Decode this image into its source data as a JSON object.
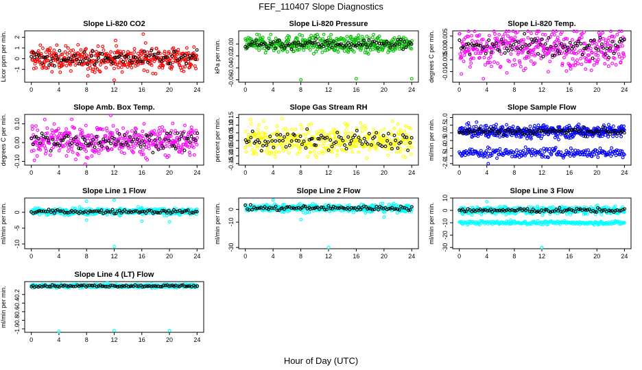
{
  "figure": {
    "title": "FEF_110407  Slope Diagnostics",
    "xlabel": "Hour of Day (UTC)"
  },
  "chart_data": [
    {
      "type": "scatter",
      "title": "Slope Li-820 CO2",
      "ylabel": "Licor ppm per min.",
      "color": "#ff0000",
      "xlim": [
        0,
        24
      ],
      "x_ticks": [
        0,
        4,
        8,
        12,
        16,
        20,
        24
      ],
      "ylim": [
        -2.2,
        2.6
      ],
      "y_ticks": [
        -1,
        0,
        1,
        2
      ],
      "y_tick_labels": [
        "-1",
        "0",
        "1",
        "2"
      ],
      "center": 0,
      "spread": 0.55,
      "band_min": -1.6,
      "band_max": 1.6,
      "outliers": [
        {
          "x": 8.2,
          "y": -1.6
        },
        {
          "x": 12.0,
          "y": -2.0
        },
        {
          "x": 16.2,
          "y": 2.3
        },
        {
          "x": 12.2,
          "y": 1.7
        }
      ],
      "second_band": null
    },
    {
      "type": "scatter",
      "title": "Slope Li-820 Pressure",
      "ylabel": "kPa per min.",
      "color": "#00c000",
      "xlim": [
        0,
        24
      ],
      "x_ticks": [
        0,
        4,
        8,
        12,
        16,
        20,
        24
      ],
      "ylim": [
        -0.064,
        0.022
      ],
      "y_ticks": [
        -0.06,
        -0.04,
        -0.02,
        0.0
      ],
      "y_tick_labels": [
        "-0.06",
        "-0.04",
        "-0.02",
        "0.00"
      ],
      "center": 0,
      "spread": 0.007,
      "band_min": -0.02,
      "band_max": 0.016,
      "outliers": [
        {
          "x": 8.0,
          "y": -0.06
        },
        {
          "x": 16.0,
          "y": -0.058
        },
        {
          "x": 24.0,
          "y": -0.058
        }
      ],
      "second_band": null
    },
    {
      "type": "scatter",
      "title": "Slope Li-820 Temp.",
      "ylabel": "degrees C per min.",
      "color": "#ff00ff",
      "xlim": [
        0,
        24
      ],
      "x_ticks": [
        0,
        4,
        8,
        12,
        16,
        20,
        24
      ],
      "ylim": [
        -0.0145,
        0.0072
      ],
      "y_ticks": [
        -0.01,
        -0.005,
        0.0,
        0.005
      ],
      "y_tick_labels": [
        "-0.010",
        "-0.005",
        "0.000",
        "0.005"
      ],
      "center": 0,
      "spread": 0.004,
      "band_min": -0.012,
      "band_max": 0.007,
      "outliers": [
        {
          "x": 3.5,
          "y": -0.013
        },
        {
          "x": 0.3,
          "y": -0.011
        }
      ],
      "second_band": null
    },
    {
      "type": "scatter",
      "title": "Slope Amb. Box Temp.",
      "ylabel": "degrees C per min.",
      "color": "#ff00ff",
      "xlim": [
        0,
        24
      ],
      "x_ticks": [
        0,
        4,
        8,
        12,
        16,
        20,
        24
      ],
      "ylim": [
        -0.12,
        0.15
      ],
      "y_ticks": [
        -0.1,
        0.0,
        0.1
      ],
      "y_tick_labels": [
        "-0.10",
        "0.00",
        "0.10"
      ],
      "center": 0.01,
      "spread": 0.04,
      "band_min": -0.1,
      "band_max": 0.13,
      "outliers": [
        {
          "x": 7.8,
          "y": -0.115
        },
        {
          "x": 11.5,
          "y": 0.145
        }
      ],
      "second_band": null
    },
    {
      "type": "scatter",
      "title": "Slope Gas Stream RH",
      "ylabel": "percent per min.",
      "color": "#ffff00",
      "xlim": [
        0,
        24
      ],
      "x_ticks": [
        0,
        4,
        8,
        12,
        16,
        20,
        24
      ],
      "ylim": [
        -0.16,
        0.17
      ],
      "y_ticks": [
        -0.15,
        -0.1,
        -0.05,
        0.0,
        0.05,
        0.1,
        0.15
      ],
      "y_tick_labels": [
        "-0.15",
        "-0.10",
        "-0.05",
        "0.00",
        "0.05",
        "0.10",
        "0.15"
      ],
      "center": 0,
      "spread": 0.05,
      "band_min": -0.15,
      "band_max": 0.15,
      "outliers": [],
      "second_band": null
    },
    {
      "type": "scatter",
      "title": "Slope Sample Flow",
      "ylabel": "ml/min per min.",
      "color": "#0000ff",
      "xlim": [
        0,
        24
      ],
      "x_ticks": [
        0,
        4,
        8,
        12,
        16,
        20,
        24
      ],
      "ylim": [
        -2.1,
        1.2
      ],
      "y_ticks": [
        -2,
        -1.5,
        -1,
        -0.5,
        0,
        0.5,
        1
      ],
      "y_tick_labels": [
        "-2.0",
        "-1.5",
        "-1.0",
        "-0.5",
        "0.0",
        "0.5",
        "1.0"
      ],
      "center": 0.1,
      "spread": 0.2,
      "band_min": -0.7,
      "band_max": 1.0,
      "outliers": [
        {
          "x": 4.2,
          "y": -2.0
        }
      ],
      "second_band": {
        "center": -1.3,
        "spread": 0.25
      }
    },
    {
      "type": "scatter",
      "title": "Slope Line 1 Flow",
      "ylabel": "ml/min per min.",
      "color": "#00ffff",
      "xlim": [
        0,
        24
      ],
      "x_ticks": [
        0,
        4,
        8,
        12,
        16,
        20,
        24
      ],
      "ylim": [
        -11.5,
        4.5
      ],
      "y_ticks": [
        -10,
        -5,
        0
      ],
      "y_tick_labels": [
        "-10",
        "-5",
        "0"
      ],
      "center": 0.2,
      "spread": 0.5,
      "band_min": -1.5,
      "band_max": 2.0,
      "outliers": [
        {
          "x": 12.0,
          "y": -10.8
        },
        {
          "x": 8.0,
          "y": 3.5
        },
        {
          "x": 12.0,
          "y": 3.8
        },
        {
          "x": 8.0,
          "y": -2.5
        },
        {
          "x": 20.0,
          "y": -3.0
        },
        {
          "x": 16.0,
          "y": -2.8
        }
      ],
      "second_band": null
    },
    {
      "type": "scatter",
      "title": "Slope Line 2 Flow",
      "ylabel": "ml/min per min.",
      "color": "#00ffff",
      "xlim": [
        0,
        24
      ],
      "x_ticks": [
        0,
        4,
        8,
        12,
        16,
        20,
        24
      ],
      "ylim": [
        -31,
        9
      ],
      "y_ticks": [
        -30,
        -10,
        0
      ],
      "y_tick_labels": [
        "-30",
        "-10",
        "0"
      ],
      "center": 1,
      "spread": 1.5,
      "band_min": -4,
      "band_max": 6,
      "outliers": [
        {
          "x": 12.0,
          "y": -30.0
        },
        {
          "x": 4.0,
          "y": 7.5
        },
        {
          "x": 20.0,
          "y": -6.0
        },
        {
          "x": 8.0,
          "y": -8.0
        }
      ],
      "second_band": null
    },
    {
      "type": "scatter",
      "title": "Slope Line 3 Flow",
      "ylabel": "ml/min per min.",
      "color": "#00ffff",
      "xlim": [
        0,
        24
      ],
      "x_ticks": [
        0,
        4,
        8,
        12,
        16,
        20,
        24
      ],
      "ylim": [
        -31,
        10
      ],
      "y_ticks": [
        -30,
        -20,
        -10,
        0,
        10
      ],
      "y_tick_labels": [
        "-30",
        "-20",
        "-10",
        "0",
        "10"
      ],
      "center": 0,
      "spread": 1.5,
      "band_min": -4,
      "band_max": 6,
      "outliers": [
        {
          "x": 12.0,
          "y": -30.0
        },
        {
          "x": 4.0,
          "y": 7.0
        },
        {
          "x": 7.5,
          "y": -8.0
        }
      ],
      "second_band": {
        "center": -10,
        "spread": 1.2
      }
    },
    {
      "type": "scatter",
      "title": "Slope Line 4 (LT) Flow",
      "ylabel": "ml/min per min.",
      "color": "#00ffff",
      "xlim": [
        0,
        24
      ],
      "x_ticks": [
        0,
        4,
        8,
        12,
        16,
        20,
        24
      ],
      "ylim": [
        -1.08,
        0.1
      ],
      "y_ticks": [
        -1.0,
        -0.8,
        -0.6,
        -0.4,
        -0.2
      ],
      "y_tick_labels": [
        "-1.0",
        "-0.8",
        "-0.6",
        "-0.4",
        "-0.2"
      ],
      "center": 0,
      "spread": 0.02,
      "band_min": -0.08,
      "band_max": 0.07,
      "outliers": [
        {
          "x": 4.0,
          "y": -1.06
        },
        {
          "x": 12.0,
          "y": -1.04
        },
        {
          "x": 20.0,
          "y": -1.04
        },
        {
          "x": 11.0,
          "y": 0.08
        }
      ],
      "second_band": null
    }
  ]
}
